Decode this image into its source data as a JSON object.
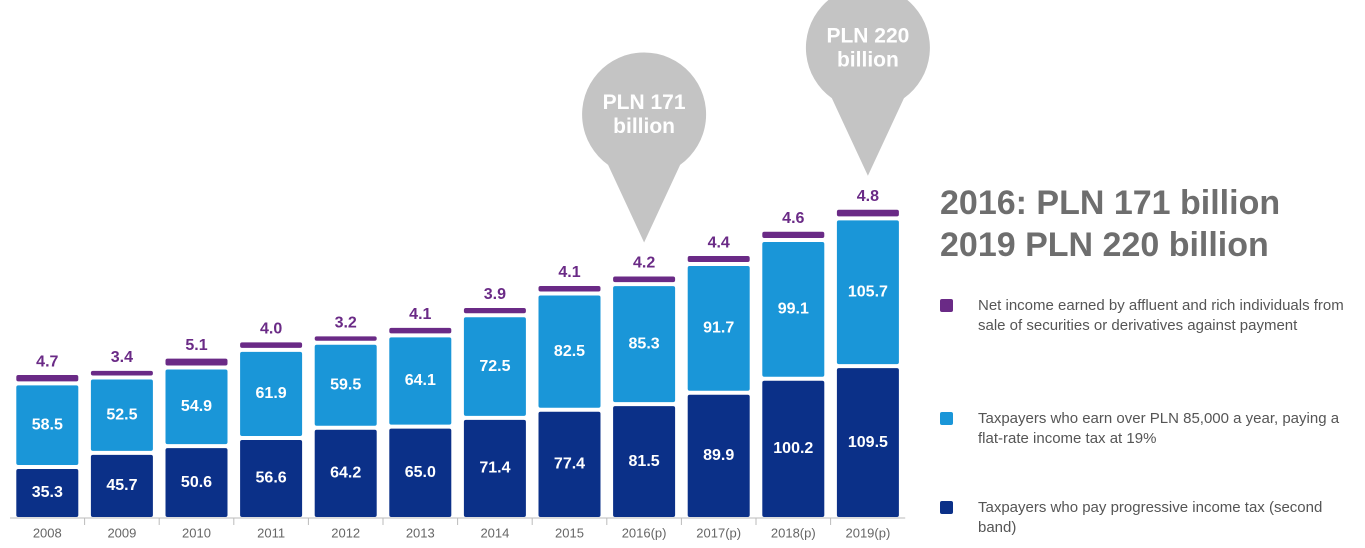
{
  "chart_data": {
    "type": "stacked-bar",
    "title": [
      "2016: PLN 171 billion",
      "2019 PLN 220 billion"
    ],
    "categories": [
      "2008",
      "2009",
      "2010",
      "2011",
      "2012",
      "2013",
      "2014",
      "2015",
      "2016(p)",
      "2017(p)",
      "2018(p)",
      "2019(p)"
    ],
    "series": [
      {
        "name": "Taxpayers who pay progressive income tax (second band)",
        "color": "#0b3088",
        "values": [
          35.3,
          45.7,
          50.6,
          56.6,
          64.2,
          65.0,
          71.4,
          77.4,
          81.5,
          89.9,
          100.2,
          109.5
        ],
        "value_labels": [
          "35.3",
          "45.7",
          "50.6",
          "56.6",
          "64.2",
          "65.0",
          "71.4",
          "77.4",
          "81.5",
          "89.9",
          "100.2",
          "109.5"
        ]
      },
      {
        "name": "Taxpayers who earn over PLN 85,000 a year, paying a flat-rate income tax at 19%",
        "color": "#1a96d8",
        "values": [
          58.5,
          52.5,
          54.9,
          61.9,
          59.5,
          64.1,
          72.5,
          82.5,
          85.3,
          91.7,
          99.1,
          105.7
        ],
        "value_labels": [
          "58.5",
          "52.5",
          "54.9",
          "61.9",
          "59.5",
          "64.1",
          "72.5",
          "82.5",
          "85.3",
          "91.7",
          "99.1",
          "105.7"
        ]
      },
      {
        "name": "Net income earned by affluent and rich individuals from sale of securities or derivatives against payment",
        "color": "#6a2a86",
        "values": [
          4.7,
          3.4,
          5.1,
          4.0,
          3.2,
          4.1,
          3.9,
          4.1,
          4.2,
          4.4,
          4.6,
          4.8
        ],
        "value_labels": [
          "4.7",
          "3.4",
          "5.1",
          "4.0",
          "3.2",
          "4.1",
          "3.9",
          "4.1",
          "4.2",
          "4.4",
          "4.6",
          "4.8"
        ]
      }
    ],
    "annotations": [
      {
        "text": [
          "PLN 171",
          "billion"
        ],
        "category": 8
      },
      {
        "text": [
          "PLN 220",
          "billion"
        ],
        "category": 11
      }
    ]
  }
}
